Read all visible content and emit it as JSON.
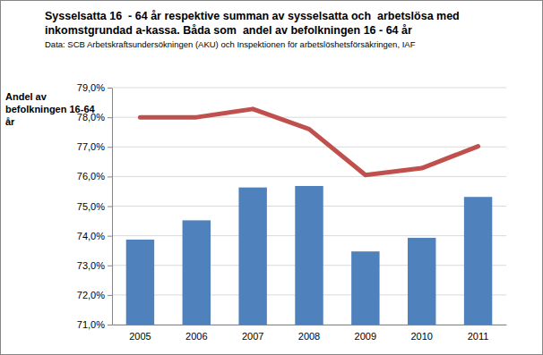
{
  "chart_data": {
    "type": "bar",
    "title": "Sysselsatta 16  - 64 år respektive summan av sysselsatta och  arbetslösa med inkomstgrundad a-kassa. Båda som  andel av befolkningen 16 - 64 år",
    "subtitle": "Data: SCB Arbetskraftsundersökningen (AKU) och Inspektionen för arbetslöshetsförsäkringen, IAF",
    "y_label": "Andel av befolkningen 16-64 år",
    "categories": [
      "2005",
      "2006",
      "2007",
      "2008",
      "2009",
      "2010",
      "2011"
    ],
    "series": [
      {
        "type": "bar",
        "color": "#4f81bd",
        "values": [
          73.87,
          74.52,
          75.63,
          75.68,
          73.47,
          73.93,
          75.31
        ]
      },
      {
        "type": "line",
        "color": "#c0504d",
        "values": [
          78.0,
          78.0,
          78.28,
          77.6,
          76.05,
          76.28,
          77.02
        ]
      }
    ],
    "ylim": [
      71,
      79
    ],
    "yticks": [
      {
        "value": 71,
        "label": "71,0%"
      },
      {
        "value": 72,
        "label": "72,0%"
      },
      {
        "value": 73,
        "label": "73,0%"
      },
      {
        "value": 74,
        "label": "74,0%"
      },
      {
        "value": 75,
        "label": "75,0%"
      },
      {
        "value": 76,
        "label": "76,0%"
      },
      {
        "value": 77,
        "label": "77,0%"
      },
      {
        "value": 78,
        "label": "78,0%"
      },
      {
        "value": 79,
        "label": "79,0%"
      }
    ],
    "grid": true
  }
}
